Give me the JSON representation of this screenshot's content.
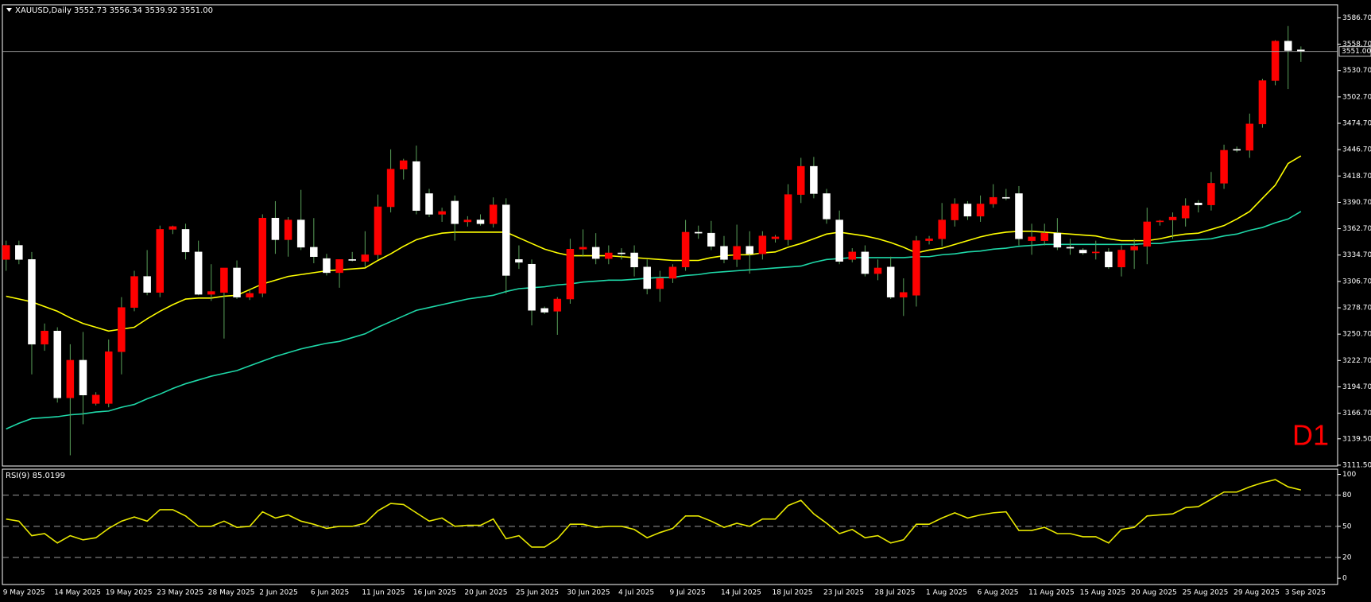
{
  "chart_data": [
    {
      "type": "candlestick",
      "title": "XAUUSD,Daily  3552.73 3556.34 3539.92 3551.00",
      "annotation": "D1",
      "annotation_color": "#ff0000",
      "up_color": "#ff0000",
      "down_color": "#ffffff",
      "wick_color": "#5aa05a",
      "categories": [
        "9 May 2025",
        null,
        null,
        null,
        "14 May 2025",
        null,
        null,
        null,
        "19 May 2025",
        null,
        null,
        null,
        "23 May 2025",
        null,
        null,
        null,
        "28 May 2025",
        null,
        null,
        null,
        "2 Jun 2025",
        null,
        null,
        null,
        "6 Jun 2025",
        null,
        null,
        null,
        "11 Jun 2025",
        null,
        null,
        null,
        "16 Jun 2025",
        null,
        null,
        null,
        "20 Jun 2025",
        null,
        null,
        null,
        "25 Jun 2025",
        null,
        null,
        null,
        "30 Jun 2025",
        null,
        null,
        null,
        "4 Jul 2025",
        null,
        null,
        null,
        "9 Jul 2025",
        null,
        null,
        null,
        "14 Jul 2025",
        null,
        null,
        null,
        "18 Jul 2025",
        null,
        null,
        null,
        "23 Jul 2025",
        null,
        null,
        null,
        "28 Jul 2025",
        null,
        null,
        null,
        "1 Aug 2025",
        null,
        null,
        null,
        "6 Aug 2025",
        null,
        null,
        null,
        "11 Aug 2025",
        null,
        null,
        null,
        "15 Aug 2025",
        null,
        null,
        null,
        "20 Aug 2025",
        null,
        null,
        null,
        "25 Aug 2025",
        null,
        null,
        null,
        "29 Aug 2025",
        null,
        null,
        null,
        "3 Sep 2025",
        null
      ],
      "open": [
        3330,
        3345,
        3330,
        3240,
        3254,
        3183,
        3223,
        3177,
        3177,
        3232,
        3279,
        3312,
        3295,
        3362,
        3362,
        3338,
        3293,
        3295,
        3321,
        3290,
        3294,
        3374,
        3351,
        3372,
        3343,
        3331,
        3316,
        3330,
        3328,
        3335,
        3386,
        3426,
        3434,
        3400,
        3378,
        3392,
        3370,
        3372,
        3368,
        3388,
        3330,
        3325,
        3278,
        3275,
        3288,
        3341,
        3343,
        3331,
        3337,
        3337,
        3322,
        3299,
        3310,
        3322,
        3359,
        3358,
        3344,
        3330,
        3344,
        3336,
        3352,
        3351,
        3399,
        3429,
        3400,
        3372,
        3330,
        3338,
        3315,
        3322,
        3290,
        3292,
        3350,
        3352,
        3372,
        3389,
        3376,
        3389,
        3396,
        3400,
        3350,
        3350,
        3358,
        3343,
        3340,
        3337,
        3338,
        3322,
        3340,
        3344,
        3370,
        3372,
        3374,
        3390,
        3388,
        3411,
        3447,
        3446,
        3474,
        3520,
        3562,
        3552.73
      ],
      "high": [
        3350,
        3350,
        3338,
        3262,
        3258,
        3240,
        3253,
        3189,
        3245,
        3290,
        3318,
        3340,
        3366,
        3366,
        3368,
        3350,
        3325,
        3321,
        3329,
        3298,
        3378,
        3392,
        3375,
        3404,
        3374,
        3336,
        3327,
        3338,
        3360,
        3399,
        3447,
        3437,
        3451,
        3405,
        3385,
        3398,
        3376,
        3378,
        3396,
        3395,
        3345,
        3330,
        3280,
        3290,
        3352,
        3362,
        3358,
        3345,
        3342,
        3345,
        3330,
        3318,
        3325,
        3372,
        3366,
        3371,
        3355,
        3367,
        3360,
        3360,
        3356,
        3410,
        3438,
        3439,
        3405,
        3382,
        3342,
        3345,
        3330,
        3333,
        3310,
        3355,
        3355,
        3390,
        3395,
        3392,
        3398,
        3410,
        3405,
        3408,
        3368,
        3368,
        3374,
        3352,
        3342,
        3350,
        3342,
        3345,
        3352,
        3385,
        3372,
        3380,
        3395,
        3393,
        3423,
        3452,
        3450,
        3485,
        3522,
        3563,
        3578,
        3556.34
      ],
      "low": [
        3318,
        3325,
        3208,
        3233,
        3178,
        3122,
        3155,
        3175,
        3173,
        3208,
        3275,
        3292,
        3290,
        3357,
        3330,
        3292,
        3286,
        3246,
        3288,
        3287,
        3290,
        3336,
        3333,
        3340,
        3326,
        3313,
        3300,
        3328,
        3322,
        3330,
        3380,
        3415,
        3378,
        3375,
        3370,
        3350,
        3365,
        3366,
        3364,
        3294,
        3320,
        3260,
        3272,
        3250,
        3283,
        3333,
        3325,
        3325,
        3330,
        3312,
        3293,
        3285,
        3305,
        3318,
        3352,
        3340,
        3326,
        3322,
        3315,
        3330,
        3348,
        3345,
        3390,
        3395,
        3368,
        3325,
        3327,
        3312,
        3308,
        3288,
        3270,
        3280,
        3346,
        3344,
        3365,
        3372,
        3370,
        3385,
        3393,
        3345,
        3335,
        3345,
        3340,
        3335,
        3335,
        3330,
        3320,
        3312,
        3320,
        3325,
        3366,
        3352,
        3365,
        3380,
        3382,
        3405,
        3444,
        3438,
        3470,
        3515,
        3511,
        3539.92
      ],
      "close": [
        3345,
        3330,
        3240,
        3254,
        3183,
        3223,
        3186,
        3186,
        3232,
        3279,
        3312,
        3295,
        3362,
        3365,
        3338,
        3293,
        3296,
        3321,
        3290,
        3294,
        3374,
        3351,
        3372,
        3343,
        3333,
        3316,
        3330,
        3329,
        3335,
        3386,
        3426,
        3435,
        3382,
        3378,
        3381,
        3368,
        3372,
        3368,
        3388,
        3313,
        3327,
        3276,
        3274,
        3288,
        3341,
        3343,
        3331,
        3337,
        3336,
        3322,
        3299,
        3310,
        3322,
        3359,
        3358,
        3344,
        3330,
        3344,
        3336,
        3355,
        3354,
        3399,
        3429,
        3400,
        3373,
        3328,
        3338,
        3315,
        3321,
        3290,
        3295,
        3350,
        3352,
        3372,
        3389,
        3376,
        3389,
        3396,
        3395,
        3352,
        3354,
        3358,
        3343,
        3342,
        3337,
        3338,
        3322,
        3340,
        3344,
        3370,
        3371,
        3375,
        3387,
        3388,
        3411,
        3446,
        3446,
        3474,
        3520,
        3562,
        3552,
        3551
      ],
      "lines": [
        {
          "color": "#ffff00",
          "values": [
            3291,
            3288,
            3285,
            3280,
            3275,
            3268,
            3262,
            3258,
            3254,
            3256,
            3258,
            3267,
            3275,
            3282,
            3288,
            3289,
            3289,
            3291,
            3292,
            3298,
            3304,
            3308,
            3312,
            3314,
            3316,
            3318,
            3319,
            3320,
            3321,
            3329,
            3336,
            3344,
            3351,
            3355,
            3358,
            3359,
            3359,
            3359,
            3359,
            3359,
            3353,
            3347,
            3341,
            3337,
            3334,
            3334,
            3334,
            3334,
            3333,
            3332,
            3331,
            3330,
            3329,
            3329,
            3329,
            3332,
            3334,
            3335,
            3335,
            3337,
            3338,
            3343,
            3347,
            3352,
            3357,
            3359,
            3357,
            3355,
            3352,
            3348,
            3343,
            3337,
            3340,
            3342,
            3346,
            3350,
            3354,
            3357,
            3359,
            3360,
            3360,
            3359,
            3358,
            3357,
            3356,
            3355,
            3352,
            3350,
            3350,
            3350,
            3352,
            3355,
            3357,
            3358,
            3362,
            3366,
            3373,
            3381,
            3395,
            3409,
            3432,
            3440
          ]
        },
        {
          "color": "#1ed8a8",
          "values": [
            3150,
            3156,
            3161,
            3162,
            3163,
            3165,
            3166,
            3168,
            3169,
            3173,
            3176,
            3182,
            3187,
            3193,
            3198,
            3202,
            3206,
            3209,
            3212,
            3217,
            3222,
            3227,
            3231,
            3235,
            3238,
            3241,
            3243,
            3247,
            3251,
            3258,
            3264,
            3270,
            3276,
            3279,
            3282,
            3285,
            3288,
            3290,
            3292,
            3296,
            3299,
            3300,
            3301,
            3303,
            3304,
            3306,
            3307,
            3308,
            3308,
            3309,
            3310,
            3311,
            3311,
            3313,
            3314,
            3316,
            3317,
            3318,
            3319,
            3320,
            3321,
            3322,
            3323,
            3327,
            3330,
            3331,
            3332,
            3332,
            3332,
            3332,
            3332,
            3333,
            3333,
            3335,
            3336,
            3338,
            3339,
            3341,
            3342,
            3344,
            3345,
            3346,
            3346,
            3346,
            3346,
            3346,
            3346,
            3346,
            3346,
            3347,
            3347,
            3349,
            3350,
            3351,
            3352,
            3355,
            3357,
            3361,
            3364,
            3369,
            3373,
            3381
          ]
        }
      ],
      "last_price": {
        "value": 3551,
        "label": "3551.00"
      },
      "ylim": [
        3110.6,
        3600.6
      ],
      "yticks": [
        {
          "value": 3586.7,
          "label": "3586.70"
        },
        {
          "value": 3558.7,
          "label": "3558.70"
        },
        {
          "value": 3530.7,
          "label": "3530.70"
        },
        {
          "value": 3502.7,
          "label": "3502.70"
        },
        {
          "value": 3474.7,
          "label": "3474.70"
        },
        {
          "value": 3446.7,
          "label": "3446.70"
        },
        {
          "value": 3418.7,
          "label": "3418.70"
        },
        {
          "value": 3390.7,
          "label": "3390.70"
        },
        {
          "value": 3362.7,
          "label": "3362.70"
        },
        {
          "value": 3334.7,
          "label": "3334.70"
        },
        {
          "value": 3306.7,
          "label": "3306.70"
        },
        {
          "value": 3278.7,
          "label": "3278.70"
        },
        {
          "value": 3250.7,
          "label": "3250.70"
        },
        {
          "value": 3222.7,
          "label": "3222.70"
        },
        {
          "value": 3194.7,
          "label": "3194.70"
        },
        {
          "value": 3166.7,
          "label": "3166.70"
        },
        {
          "value": 3139.5,
          "label": "3139.50"
        },
        {
          "value": 3111.5,
          "label": "3111.50"
        }
      ]
    },
    {
      "type": "line",
      "title": "RSI(9) 85.0199",
      "color": "#e8e800",
      "values": [
        57,
        55,
        41,
        43,
        34,
        41,
        37,
        39,
        48,
        55,
        59,
        55,
        66,
        66,
        60,
        50,
        50,
        55,
        49,
        50,
        64,
        58,
        61,
        55,
        52,
        48,
        50,
        50,
        53,
        65,
        72,
        71,
        63,
        55,
        58,
        50,
        51,
        51,
        57,
        38,
        41,
        30,
        30,
        38,
        52,
        52,
        49,
        50,
        50,
        47,
        39,
        44,
        48,
        60,
        60,
        55,
        49,
        53,
        50,
        57,
        57,
        70,
        75,
        62,
        53,
        43,
        47,
        39,
        41,
        34,
        37,
        52,
        52,
        58,
        63,
        58,
        61,
        63,
        64,
        46,
        46,
        49,
        43,
        43,
        40,
        40,
        34,
        47,
        49,
        60,
        61,
        62,
        68,
        69,
        76,
        83,
        83,
        88,
        92,
        95,
        88,
        85.0199
      ],
      "levels": [
        80,
        50,
        20
      ],
      "ylim": [
        -6,
        105
      ],
      "yticks": [
        100,
        80,
        50,
        20,
        0
      ]
    }
  ]
}
